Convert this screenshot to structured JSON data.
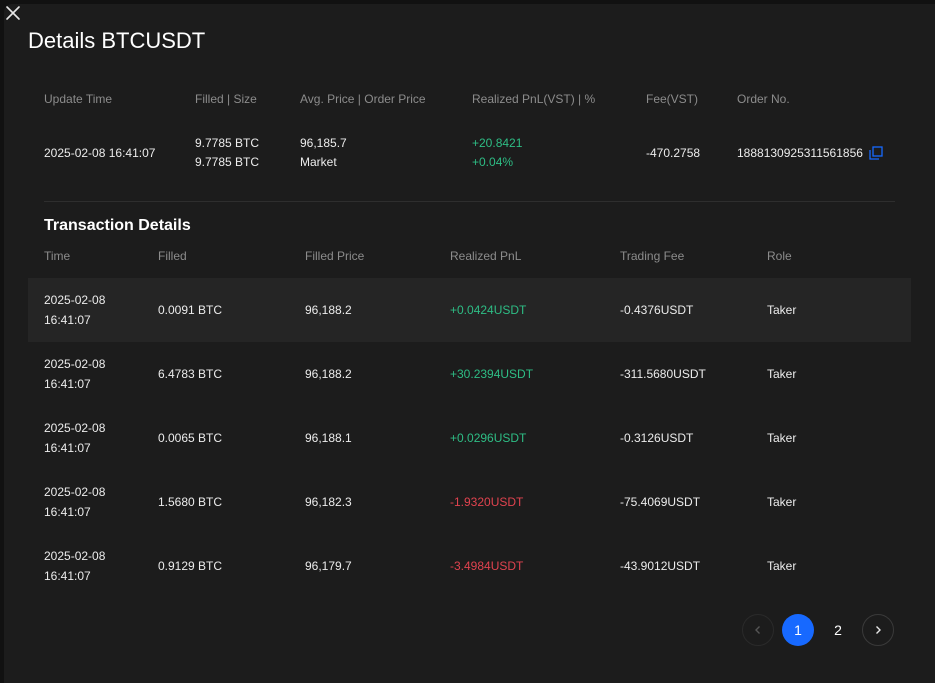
{
  "header": {
    "title": "Details BTCUSDT"
  },
  "summary": {
    "columns": [
      "Update Time",
      "Filled | Size",
      "Avg. Price | Order Price",
      "Realized PnL(VST)  |  %",
      "Fee(VST)",
      "Order No."
    ],
    "row": {
      "update_time": "2025-02-08 16:41:07",
      "filled": [
        "9.7785  BTC",
        "9.7785  BTC"
      ],
      "price": [
        "96,185.7",
        "Market"
      ],
      "pnl": [
        "+20.8421",
        "+0.04%"
      ],
      "fee": "-470.2758",
      "order_no": "1888130925311561856"
    }
  },
  "transactions": {
    "title": "Transaction Details",
    "columns": [
      "Time",
      "Filled",
      "Filled Price",
      "Realized PnL",
      "Trading Fee",
      "Role"
    ],
    "rows": [
      {
        "date": "2025-02-08",
        "time": "16:41:07",
        "filled": "0.0091 BTC",
        "price": "96,188.2",
        "pnl": "+0.0424USDT",
        "fee": "-0.4376USDT",
        "role": "Taker"
      },
      {
        "date": "2025-02-08",
        "time": "16:41:07",
        "filled": "6.4783 BTC",
        "price": "96,188.2",
        "pnl": "+30.2394USDT",
        "fee": "-311.5680USDT",
        "role": "Taker"
      },
      {
        "date": "2025-02-08",
        "time": "16:41:07",
        "filled": "0.0065 BTC",
        "price": "96,188.1",
        "pnl": "+0.0296USDT",
        "fee": "-0.3126USDT",
        "role": "Taker"
      },
      {
        "date": "2025-02-08",
        "time": "16:41:07",
        "filled": "1.5680 BTC",
        "price": "96,182.3",
        "pnl": "-1.9320USDT",
        "fee": "-75.4069USDT",
        "role": "Taker"
      },
      {
        "date": "2025-02-08",
        "time": "16:41:07",
        "filled": "0.9129 BTC",
        "price": "96,179.7",
        "pnl": "-3.4984USDT",
        "fee": "-43.9012USDT",
        "role": "Taker"
      }
    ]
  },
  "pagination": {
    "pages": [
      "1",
      "2"
    ]
  }
}
